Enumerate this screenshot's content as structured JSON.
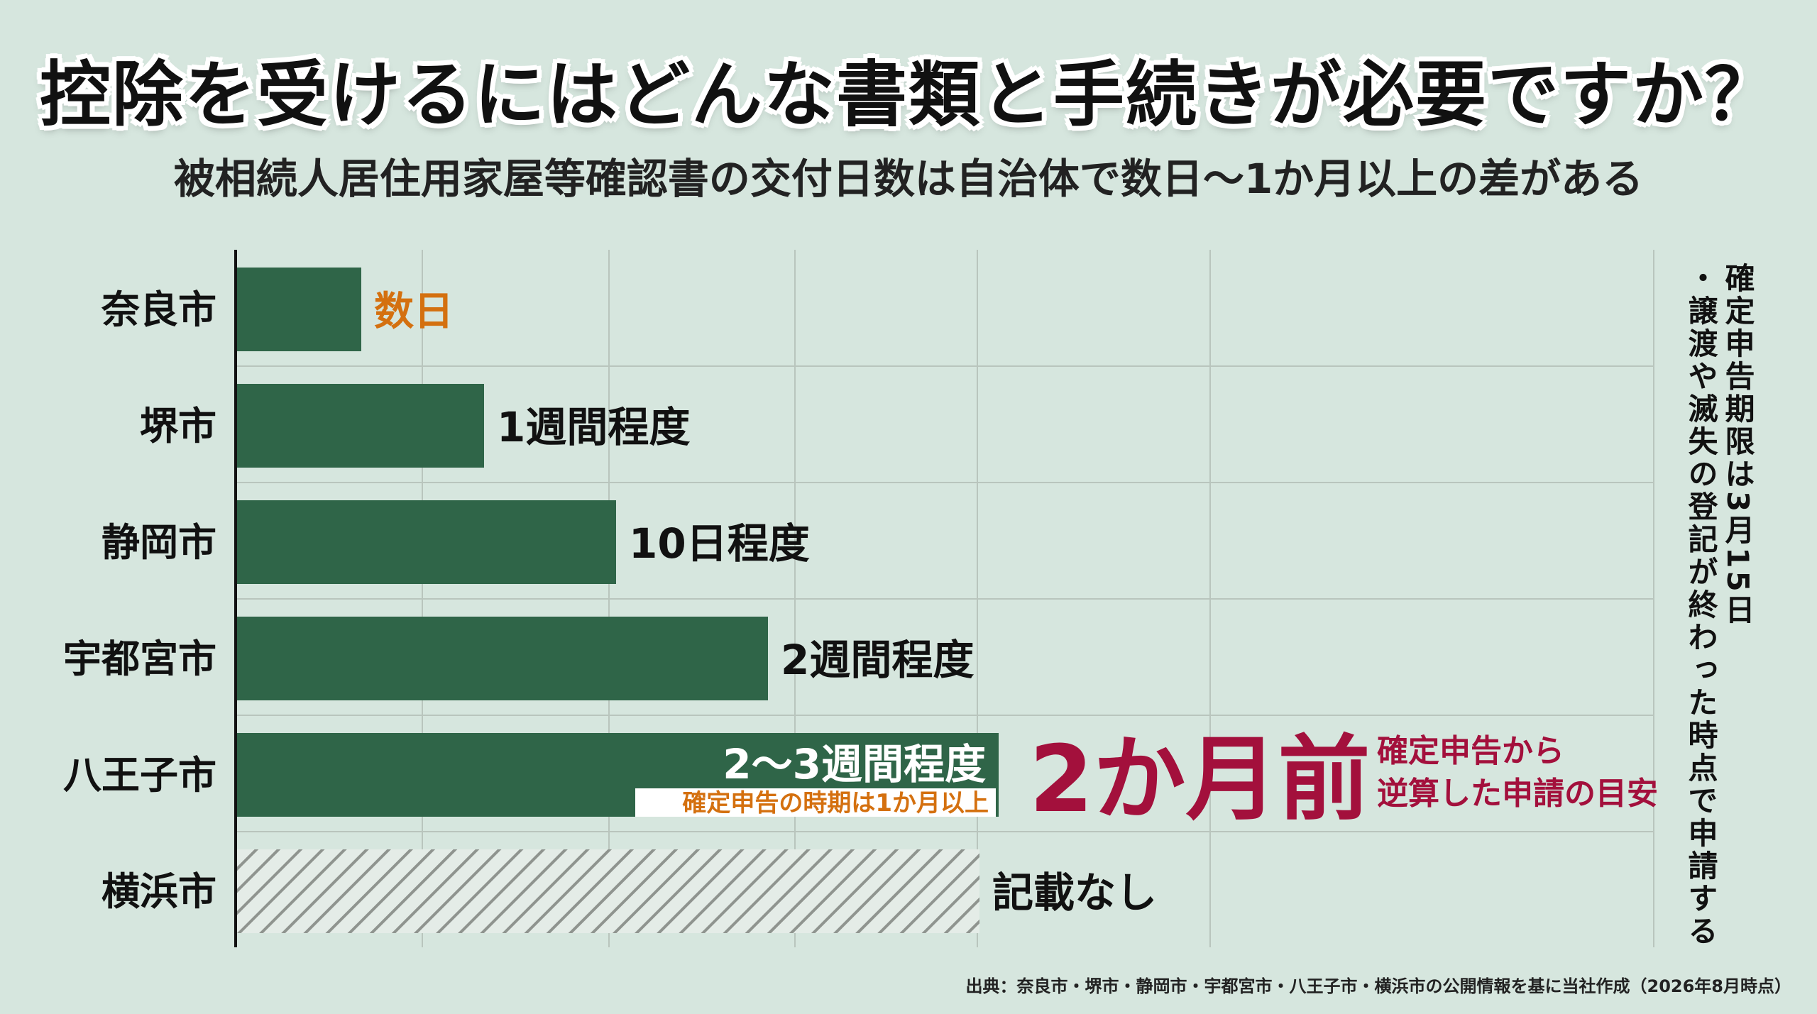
{
  "title": "控除を受けるにはどんな書類と手続きが必要ですか？",
  "subtitle": "被相続人居住用家屋等確認書の交付日数は自治体で数日〜1か月以上の差がある",
  "chart_data": {
    "type": "bar",
    "orientation": "horizontal",
    "categories": [
      "奈良市",
      "堺市",
      "静岡市",
      "宇都宮市",
      "八王子市",
      "横浜市"
    ],
    "values": [
      3,
      7,
      10,
      14,
      17.5,
      null
    ],
    "value_unit": "days",
    "value_labels": [
      "数日",
      "1週間程度",
      "10日程度",
      "2週間程度",
      "2〜3週間程度",
      "記載なし"
    ],
    "bar_note": "確定申告の時期は1か月以上",
    "highlight": {
      "big_text": "2か月前",
      "side_text": [
        "確定申告から",
        "逆算した申請の目安"
      ]
    },
    "side_notes": [
      "確定申告期限は3月15日",
      "・譲渡や滅失の登記が終わった時点で申請する"
    ],
    "grid": true,
    "colors": {
      "bar": "#2f6548",
      "accent_orange": "#d4700f",
      "accent_red": "#a3103c",
      "hatch": "#8f948f",
      "grid": "#b9c5bd"
    }
  },
  "source": "出典：奈良市・堺市・静岡市・宇都宮市・八王子市・横浜市の公開情報を基に当社作成（2026年8月時点）"
}
